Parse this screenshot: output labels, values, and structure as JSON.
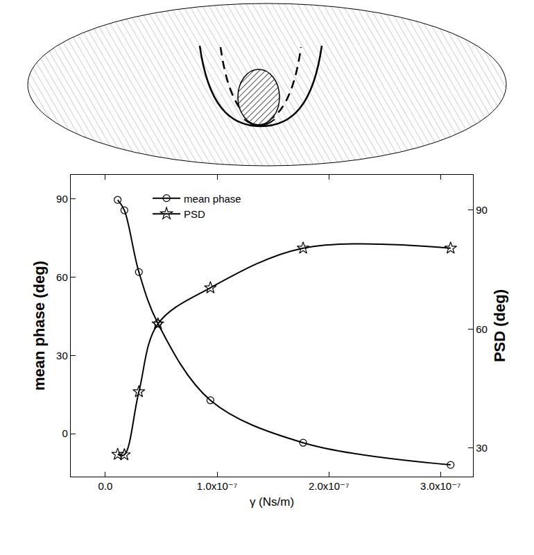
{
  "chart_data": {
    "type": "line",
    "x_label": "γ (Ns/m)",
    "y_label": "mean phase (deg)",
    "y2_label": "PSD (deg)",
    "x": [
      1.1e-08,
      1.7e-08,
      3e-08,
      4.7e-08,
      9.4e-08,
      1.77e-07,
      3.09e-07
    ],
    "series": [
      {
        "name": "mean phase",
        "color": "#000000",
        "marker": "circle",
        "line_style": "solid",
        "values": [
          89.7,
          85.7,
          62,
          42.3,
          12.8,
          -3.5,
          -12
        ]
      },
      {
        "name": "PSD",
        "color": "#000000",
        "marker": "star",
        "line_style": "solid",
        "axis": "y2",
        "values": [
          28.4,
          28.3,
          44.2,
          61.3,
          70.4,
          80.4,
          80.4
        ]
      }
    ],
    "xlim": [
      -3.1e-08,
      3.29e-07
    ],
    "xticks": [
      {
        "value": 0,
        "label": "0.0"
      },
      {
        "value": 1e-07,
        "label": "1.0x10⁻⁷"
      },
      {
        "value": 2e-07,
        "label": "2.0x10⁻⁷"
      },
      {
        "value": 3e-07,
        "label": "3.0x10⁻⁷"
      }
    ],
    "ylim": [
      -16.5,
      99.3
    ],
    "yticks": [
      0,
      30,
      60,
      90
    ],
    "y2lim": [
      22.8,
      98.9
    ],
    "y2ticks": [
      30,
      60,
      90
    ],
    "legend": "top",
    "grid": false
  }
}
